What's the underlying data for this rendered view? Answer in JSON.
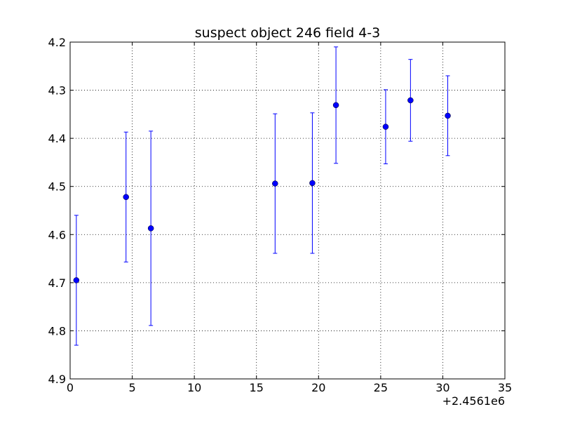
{
  "chart_data": {
    "type": "scatter",
    "title": "suspect object 246 field 4-3",
    "xlabel": "",
    "ylabel": "",
    "x_offset_label": "+2.4561e6",
    "xlim": [
      0,
      35
    ],
    "ylim": [
      4.2,
      4.9
    ],
    "y_inverted": true,
    "grid": true,
    "x_ticks": [
      "0",
      "5",
      "10",
      "15",
      "20",
      "25",
      "30",
      "35"
    ],
    "x_tick_values": [
      0,
      5,
      10,
      15,
      20,
      25,
      30,
      35
    ],
    "y_ticks": [
      "4.2",
      "4.3",
      "4.4",
      "4.5",
      "4.6",
      "4.7",
      "4.8",
      "4.9"
    ],
    "y_tick_values": [
      4.2,
      4.3,
      4.4,
      4.5,
      4.6,
      4.7,
      4.8,
      4.9
    ],
    "series": [
      {
        "color": "#0000ff",
        "points": [
          {
            "x": 0.5,
            "y": 4.695,
            "err": 0.135
          },
          {
            "x": 4.5,
            "y": 4.522,
            "err": 0.135
          },
          {
            "x": 6.5,
            "y": 4.587,
            "err": 0.202
          },
          {
            "x": 16.5,
            "y": 4.494,
            "err": 0.145
          },
          {
            "x": 19.5,
            "y": 4.493,
            "err": 0.146
          },
          {
            "x": 21.4,
            "y": 4.331,
            "err": 0.121
          },
          {
            "x": 25.4,
            "y": 4.376,
            "err": 0.077
          },
          {
            "x": 27.4,
            "y": 4.321,
            "err": 0.085
          },
          {
            "x": 30.4,
            "y": 4.353,
            "err": 0.083
          }
        ]
      }
    ]
  }
}
